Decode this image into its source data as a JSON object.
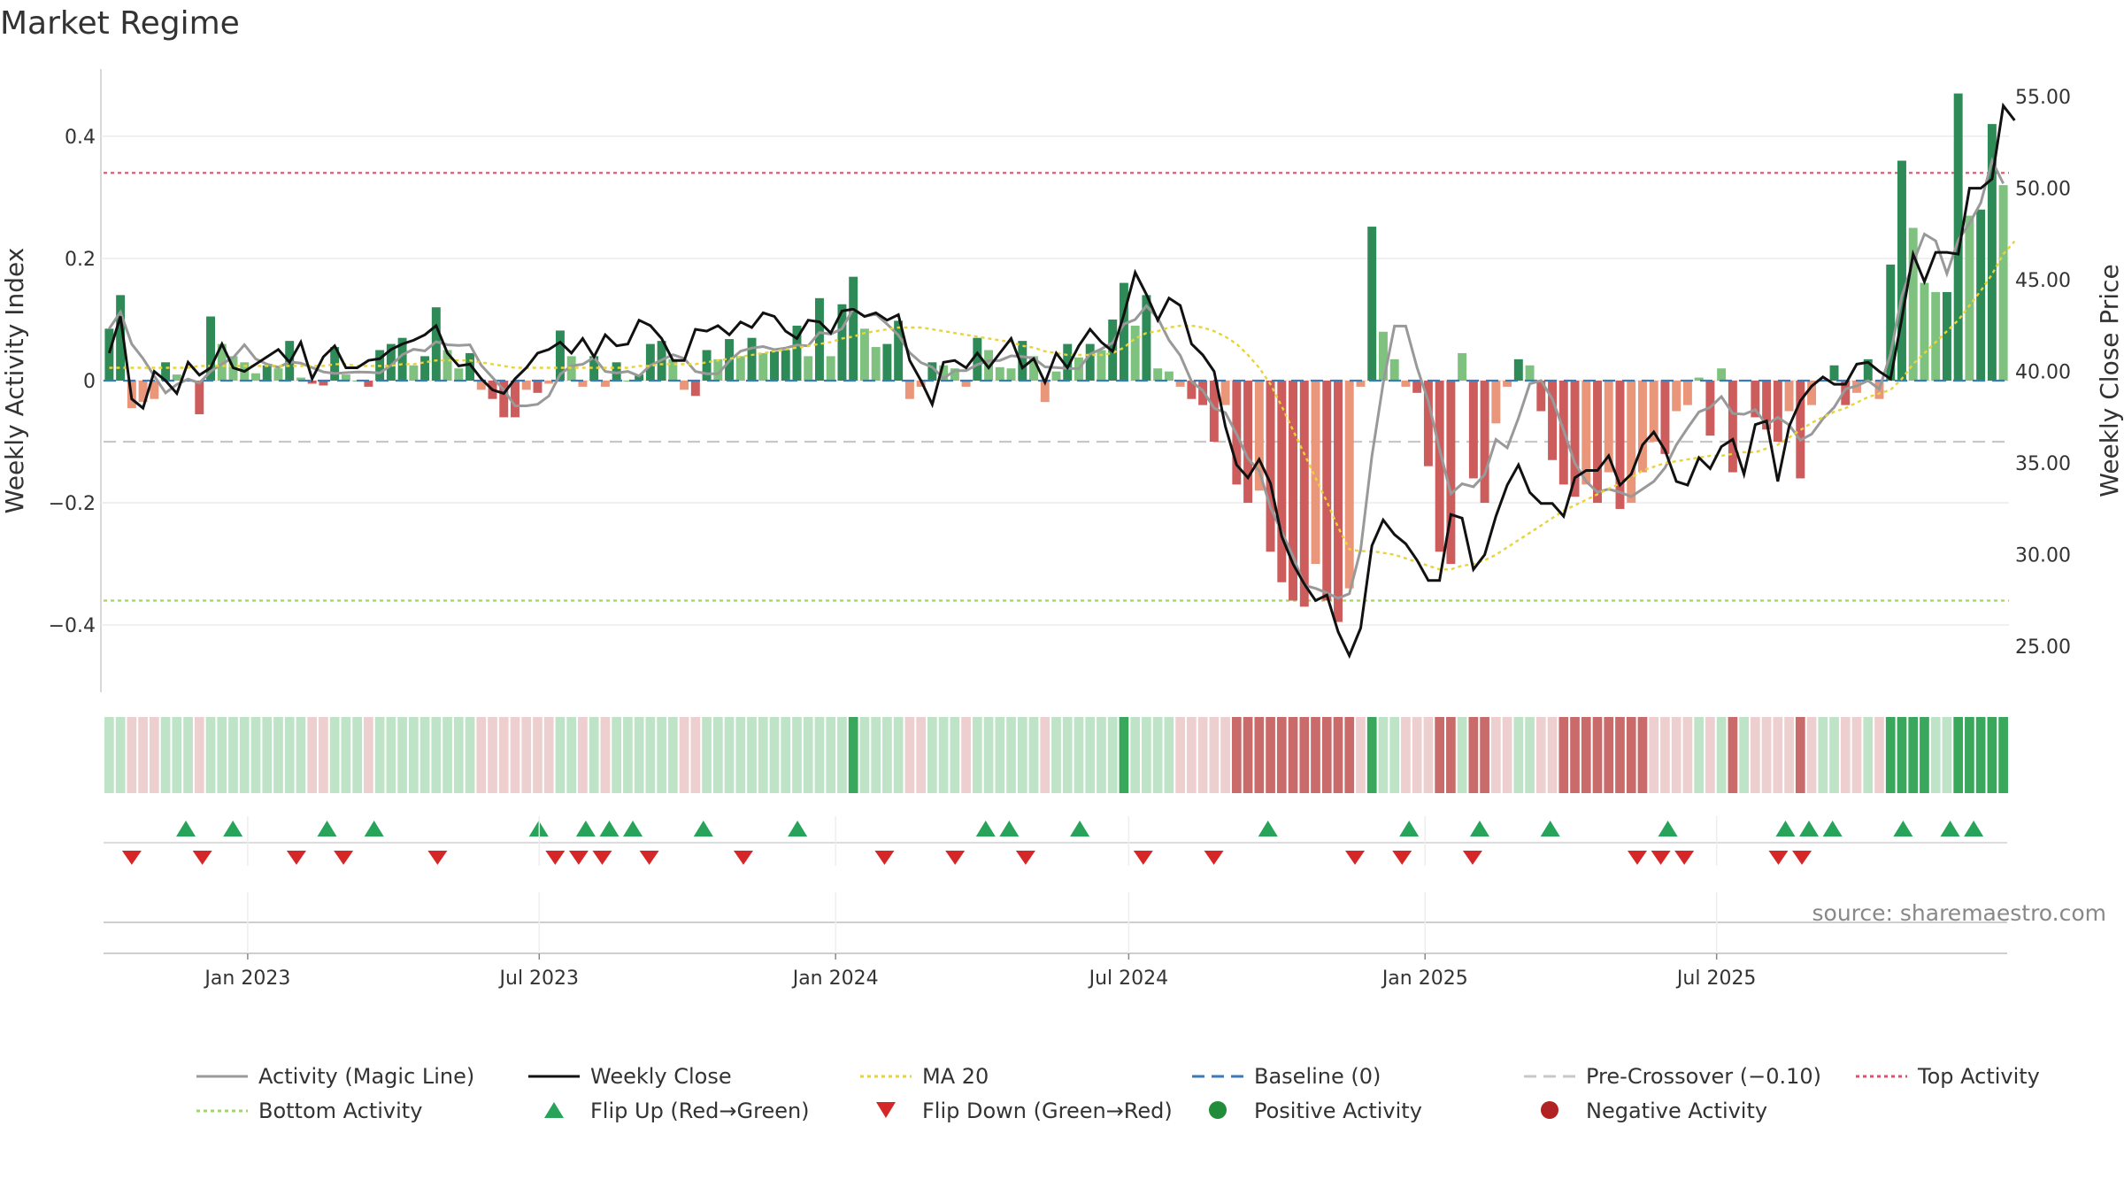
{
  "chart_data": {
    "type": "bar",
    "title": "Market Regime",
    "ylabel_left": "Weekly Activity Index",
    "ylabel_right": "Weekly Close Price",
    "source": "source: sharemaestro.com",
    "x_tick_labels": [
      "Jan 2023",
      "Jul 2023",
      "Jan 2024",
      "Jul 2024",
      "Jan 2025",
      "Jul 2025"
    ],
    "y_left_ticks": [
      "−0.4",
      "−0.2",
      "0",
      "0.2",
      "0.4"
    ],
    "y_left_values": [
      -0.4,
      -0.2,
      0,
      0.2,
      0.4
    ],
    "y_left_range": [
      -0.51,
      0.51
    ],
    "y_right_ticks": [
      "25.00",
      "30.00",
      "35.00",
      "40.00",
      "45.00",
      "50.00",
      "55.00"
    ],
    "y_right_values": [
      25,
      30,
      35,
      40,
      45,
      50,
      55
    ],
    "y_right_range": [
      22.5,
      56.5
    ],
    "start_date": "2022-10-07",
    "top_activity": 0.34,
    "bottom_activity": -0.36,
    "pre_crossover": -0.1,
    "baseline": 0,
    "activity": [
      0.085,
      0.14,
      -0.045,
      -0.035,
      -0.03,
      0.03,
      0.01,
      0.0,
      -0.055,
      0.105,
      0.06,
      0.04,
      0.03,
      0.012,
      0.025,
      0.02,
      0.065,
      0.005,
      -0.005,
      -0.008,
      0.055,
      0.01,
      0.0,
      -0.01,
      0.05,
      0.06,
      0.07,
      0.025,
      0.04,
      0.12,
      0.05,
      0.02,
      0.045,
      -0.015,
      -0.03,
      -0.06,
      -0.06,
      -0.015,
      -0.02,
      -0.005,
      0.082,
      0.04,
      -0.01,
      0.04,
      -0.01,
      0.03,
      0.0,
      0.01,
      0.06,
      0.065,
      0.035,
      -0.015,
      -0.025,
      0.05,
      0.035,
      0.068,
      0.04,
      0.07,
      0.045,
      0.048,
      0.05,
      0.09,
      0.04,
      0.135,
      0.04,
      0.125,
      0.17,
      0.085,
      0.055,
      0.06,
      0.098,
      -0.03,
      -0.01,
      0.03,
      0.025,
      0.02,
      -0.01,
      0.07,
      0.05,
      0.022,
      0.02,
      0.065,
      0.04,
      -0.035,
      0.015,
      0.06,
      0.038,
      0.06,
      0.05,
      0.1,
      0.16,
      0.09,
      0.14,
      0.02,
      0.015,
      -0.01,
      -0.03,
      -0.04,
      -0.1,
      -0.04,
      -0.17,
      -0.2,
      -0.18,
      -0.28,
      -0.33,
      -0.36,
      -0.37,
      -0.3,
      -0.36,
      -0.395,
      -0.34,
      -0.01,
      0.252,
      0.08,
      0.035,
      -0.01,
      -0.02,
      -0.14,
      -0.28,
      -0.3,
      0.045,
      -0.16,
      -0.2,
      -0.07,
      -0.01,
      0.035,
      0.025,
      -0.05,
      -0.13,
      -0.17,
      -0.19,
      -0.17,
      -0.2,
      -0.15,
      -0.21,
      -0.2,
      -0.15,
      -0.1,
      -0.12,
      -0.05,
      -0.04,
      0.005,
      -0.09,
      0.02,
      -0.15,
      0.0,
      -0.06,
      -0.08,
      -0.1,
      -0.05,
      -0.16,
      -0.04,
      0.0,
      0.025,
      -0.04,
      -0.02,
      0.035,
      -0.03,
      0.19,
      0.36,
      0.25,
      0.16,
      0.145,
      0.145,
      0.47,
      0.27,
      0.28,
      0.42,
      0.32
    ],
    "weekly_close": [
      41.0,
      43.0,
      38.5,
      38.0,
      40.0,
      39.5,
      38.8,
      40.5,
      39.8,
      40.2,
      41.5,
      40.2,
      40.0,
      40.4,
      40.8,
      41.2,
      40.5,
      41.6,
      39.6,
      40.8,
      41.4,
      40.2,
      40.2,
      40.6,
      40.7,
      41.2,
      41.5,
      41.7,
      42.0,
      42.5,
      41.0,
      40.3,
      40.4,
      39.6,
      39.0,
      38.8,
      39.6,
      40.2,
      41.0,
      41.2,
      41.6,
      41.0,
      41.8,
      40.8,
      42.0,
      41.4,
      41.5,
      42.8,
      42.5,
      41.8,
      40.6,
      40.6,
      42.3,
      42.2,
      42.5,
      42.0,
      42.7,
      42.4,
      43.2,
      43.0,
      42.2,
      41.8,
      42.8,
      42.7,
      42.1,
      43.3,
      43.4,
      43.0,
      43.2,
      42.8,
      43.1,
      40.6,
      39.5,
      38.2,
      40.5,
      40.6,
      40.2,
      41.0,
      40.2,
      41.0,
      41.8,
      40.2,
      40.7,
      39.4,
      41.0,
      40.2,
      41.4,
      42.3,
      41.6,
      41.1,
      43.1,
      45.4,
      44.2,
      42.8,
      44.0,
      43.6,
      41.5,
      40.9,
      40.0,
      37.0,
      34.9,
      34.2,
      35.2,
      33.9,
      31.0,
      29.5,
      28.4,
      27.5,
      27.8,
      25.8,
      24.5,
      26.0,
      30.5,
      31.9,
      31.1,
      30.6,
      29.7,
      28.6,
      28.6,
      32.2,
      32.0,
      29.2,
      30.0,
      32.1,
      33.8,
      34.9,
      33.4,
      32.8,
      32.8,
      32.1,
      34.2,
      34.6,
      34.6,
      35.4,
      33.8,
      34.4,
      36.0,
      36.7,
      35.7,
      34.0,
      33.8,
      35.3,
      34.7,
      35.9,
      36.3,
      34.4,
      37.1,
      37.3,
      34.0,
      37.0,
      38.4,
      39.2,
      39.7,
      39.3,
      39.3,
      40.4,
      40.5,
      40.0,
      39.6,
      42.9,
      46.4,
      44.9,
      46.5,
      46.5,
      46.4,
      50.0,
      50.0,
      50.5,
      54.5,
      53.7
    ],
    "ma20": [
      40.2,
      40.2,
      40.2,
      40.2,
      40.2,
      40.2,
      40.2,
      40.2,
      40.3,
      40.3,
      40.3,
      40.3,
      40.3,
      40.3,
      40.3,
      40.3,
      40.3,
      40.3,
      40.3,
      40.3,
      40.4,
      40.4,
      40.3,
      40.3,
      40.3,
      40.3,
      40.4,
      40.4,
      40.5,
      40.6,
      40.6,
      40.6,
      40.6,
      40.5,
      40.4,
      40.3,
      40.2,
      40.2,
      40.2,
      40.2,
      40.2,
      40.2,
      40.2,
      40.2,
      40.2,
      40.2,
      40.2,
      40.3,
      40.3,
      40.4,
      40.4,
      40.4,
      40.4,
      40.5,
      40.6,
      40.7,
      40.8,
      40.9,
      41.0,
      41.1,
      41.2,
      41.3,
      41.4,
      41.5,
      41.6,
      41.8,
      41.9,
      42.1,
      42.2,
      42.3,
      42.4,
      42.4,
      42.4,
      42.3,
      42.2,
      42.1,
      42.0,
      41.9,
      41.8,
      41.7,
      41.6,
      41.4,
      41.3,
      41.1,
      41.0,
      40.9,
      40.9,
      40.9,
      40.9,
      41.0,
      41.3,
      41.8,
      42.1,
      42.2,
      42.4,
      42.5,
      42.5,
      42.4,
      42.2,
      41.9,
      41.5,
      40.9,
      40.2,
      39.3,
      38.1,
      36.8,
      35.5,
      34.2,
      32.9,
      31.5,
      30.3,
      30.2,
      30.2,
      30.1,
      30.0,
      29.8,
      29.6,
      29.4,
      29.2,
      29.2,
      29.4,
      29.5,
      29.7,
      30.0,
      30.4,
      30.8,
      31.2,
      31.6,
      32.0,
      32.4,
      32.7,
      33.0,
      33.3,
      33.6,
      33.9,
      34.2,
      34.6,
      34.8,
      35.0,
      35.1,
      35.2,
      35.3,
      35.4,
      35.4,
      35.5,
      35.6,
      35.6,
      35.8,
      36.0,
      36.4,
      36.8,
      37.2,
      37.5,
      37.8,
      38.0,
      38.3,
      38.6,
      38.8,
      39.0,
      39.6,
      40.4,
      41.0,
      41.6,
      42.2,
      42.8,
      43.6,
      44.4,
      45.3,
      46.4,
      47.1
    ],
    "flip_up_weeks": [
      3,
      5,
      9,
      11,
      18,
      20,
      21,
      22,
      25,
      29,
      37,
      38,
      41,
      49,
      55,
      58,
      61,
      66,
      71,
      72,
      73,
      76,
      78,
      79
    ],
    "flip_down_weeks": [
      1,
      4,
      8,
      10,
      14,
      19,
      20,
      21,
      23,
      27,
      33,
      36,
      39,
      44,
      47,
      53,
      55,
      58,
      65,
      66,
      67,
      71,
      72
    ],
    "legend": [
      {
        "label": "Activity (Magic Line)",
        "type": "line",
        "color": "#999999",
        "dash": ""
      },
      {
        "label": "Weekly Close",
        "type": "line",
        "color": "#111111",
        "dash": ""
      },
      {
        "label": "MA 20",
        "type": "line",
        "color": "#e8d33a",
        "dash": "4,4"
      },
      {
        "label": "Baseline (0)",
        "type": "line",
        "color": "#3a7ab8",
        "dash": "14,8"
      },
      {
        "label": "Pre-Crossover (−0.10)",
        "type": "line",
        "color": "#c8c8c8",
        "dash": "14,8"
      },
      {
        "label": "Top Activity",
        "type": "line",
        "color": "#e0506a",
        "dash": "4,4"
      },
      {
        "label": "Bottom Activity",
        "type": "line",
        "color": "#9ed86a",
        "dash": "4,4"
      },
      {
        "label": "Flip Up (Red→Green)",
        "type": "tri-up",
        "color": "#27a35a",
        "dash": ""
      },
      {
        "label": "Flip Down (Green→Red)",
        "type": "tri-down",
        "color": "#d62728",
        "dash": ""
      },
      {
        "label": "Positive Activity",
        "type": "dot",
        "color": "#218c3a",
        "dash": ""
      },
      {
        "label": "Negative Activity",
        "type": "dot",
        "color": "#b22222",
        "dash": ""
      }
    ],
    "colors": {
      "pos_strong": "#2e8b57",
      "pos_weak": "#7fc27f",
      "neg_strong": "#cd5c5c",
      "neg_weak": "#e9967a",
      "band_pos_strong": "#3aa85c",
      "band_pos_weak": "#bfe3c6",
      "band_neg_strong": "#c96b6b",
      "band_neg_weak": "#edcfcf"
    }
  }
}
